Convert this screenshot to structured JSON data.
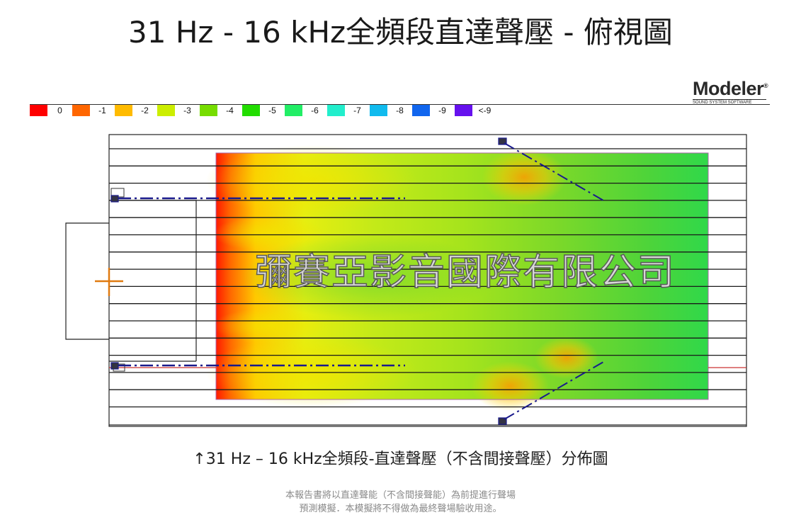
{
  "page": {
    "title": "31 Hz - 16 kHz全頻段直達聲壓 - 俯視圖",
    "caption": "↑31 Hz – 16 kHz全頻段-直達聲壓（不含間接聲壓）分佈圖",
    "disclaimer_line1": "本報告書將以直達聲能（不含間接聲能）為前提進行聲場",
    "disclaimer_line2": "預測模擬．本模擬將不得做為最終聲場驗收用途。"
  },
  "logo": {
    "name": "Modeler",
    "registered": "®",
    "subtitle": "SOUND SYSTEM SOFTWARE"
  },
  "legend": {
    "items": [
      {
        "label": "0",
        "color": "#ff0000"
      },
      {
        "label": "-1",
        "color": "#ff6600"
      },
      {
        "label": "-2",
        "color": "#ffbb00"
      },
      {
        "label": "-3",
        "color": "#ccee00"
      },
      {
        "label": "-4",
        "color": "#77dd00"
      },
      {
        "label": "-5",
        "color": "#22dd00"
      },
      {
        "label": "-6",
        "color": "#22ee66"
      },
      {
        "label": "-7",
        "color": "#22eecc"
      },
      {
        "label": "-8",
        "color": "#11bbee"
      },
      {
        "label": "-9",
        "color": "#1166ee"
      },
      {
        "label": "<-9",
        "color": "#6611ee"
      }
    ]
  },
  "watermark": "彌賽亞影音國際有限公司",
  "colors": {
    "room_outline": "#222222",
    "speaker_axis": "#1a1a8c",
    "listener_mark": "#e07a10"
  }
}
